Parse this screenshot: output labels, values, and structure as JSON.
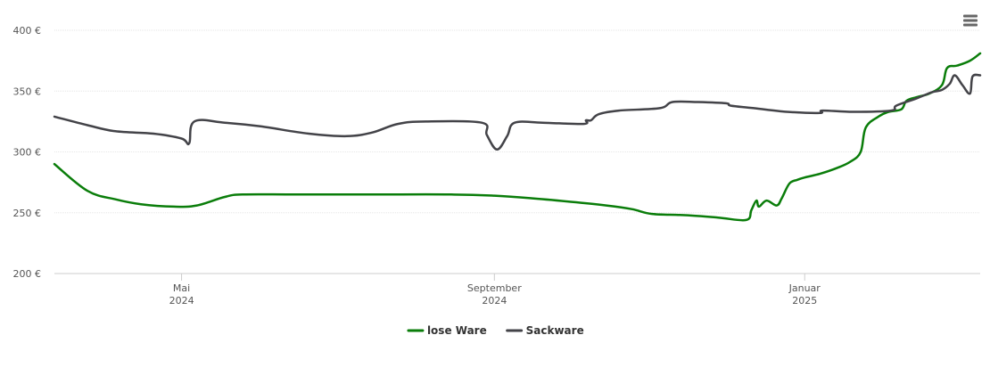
{
  "chart_data": {
    "type": "line",
    "y_unit": "€",
    "ylim": [
      200,
      400
    ],
    "y_ticks": [
      {
        "value": 200,
        "label": "200 €"
      },
      {
        "value": 250,
        "label": "250 €"
      },
      {
        "value": 300,
        "label": "300 €"
      },
      {
        "value": 350,
        "label": "350 €"
      },
      {
        "value": 400,
        "label": "400 €"
      }
    ],
    "x_range": [
      "2024-03-12",
      "2025-03-11"
    ],
    "x_ticks": [
      {
        "date": "2024-05-01",
        "month": "Mai",
        "year": "2024"
      },
      {
        "date": "2024-09-01",
        "month": "September",
        "year": "2024"
      },
      {
        "date": "2025-01-01",
        "month": "Januar",
        "year": "2025"
      }
    ],
    "grid": true,
    "legend_position": "bottom-center",
    "series": [
      {
        "name": "lose Ware",
        "color": "#0a7d0a",
        "points": [
          [
            "2024-03-12",
            290
          ],
          [
            "2024-03-25",
            268
          ],
          [
            "2024-04-05",
            261
          ],
          [
            "2024-04-15",
            257
          ],
          [
            "2024-04-28",
            255
          ],
          [
            "2024-05-07",
            256
          ],
          [
            "2024-05-18",
            263
          ],
          [
            "2024-05-25",
            265
          ],
          [
            "2024-06-15",
            265
          ],
          [
            "2024-07-15",
            265
          ],
          [
            "2024-08-15",
            265
          ],
          [
            "2024-09-01",
            264
          ],
          [
            "2024-09-15",
            262
          ],
          [
            "2024-10-01",
            259
          ],
          [
            "2024-10-15",
            256
          ],
          [
            "2024-10-25",
            253
          ],
          [
            "2024-11-02",
            249
          ],
          [
            "2024-11-15",
            248
          ],
          [
            "2024-11-28",
            246
          ],
          [
            "2024-12-09",
            244
          ],
          [
            "2024-12-11",
            252
          ],
          [
            "2024-12-13",
            260
          ],
          [
            "2024-12-14",
            255
          ],
          [
            "2024-12-17",
            260
          ],
          [
            "2024-12-21",
            256
          ],
          [
            "2024-12-23",
            262
          ],
          [
            "2024-12-26",
            274
          ],
          [
            "2024-12-29",
            277
          ],
          [
            "2025-01-01",
            279
          ],
          [
            "2025-01-07",
            282
          ],
          [
            "2025-01-14",
            287
          ],
          [
            "2025-01-19",
            292
          ],
          [
            "2025-01-23",
            300
          ],
          [
            "2025-01-25",
            320
          ],
          [
            "2025-01-30",
            329
          ],
          [
            "2025-02-03",
            333
          ],
          [
            "2025-02-08",
            335
          ],
          [
            "2025-02-10",
            342
          ],
          [
            "2025-02-14",
            345
          ],
          [
            "2025-02-19",
            348
          ],
          [
            "2025-02-24",
            355
          ],
          [
            "2025-02-26",
            369
          ],
          [
            "2025-03-02",
            371
          ],
          [
            "2025-03-07",
            375
          ],
          [
            "2025-03-11",
            381
          ]
        ]
      },
      {
        "name": "Sackware",
        "color": "#434348",
        "points": [
          [
            "2024-03-12",
            329
          ],
          [
            "2024-03-25",
            322
          ],
          [
            "2024-04-05",
            317
          ],
          [
            "2024-04-20",
            315
          ],
          [
            "2024-05-01",
            311
          ],
          [
            "2024-05-04",
            307
          ],
          [
            "2024-05-06",
            325
          ],
          [
            "2024-05-18",
            324
          ],
          [
            "2024-06-01",
            321
          ],
          [
            "2024-06-20",
            315
          ],
          [
            "2024-07-05",
            313
          ],
          [
            "2024-07-15",
            316
          ],
          [
            "2024-07-25",
            323
          ],
          [
            "2024-08-05",
            325
          ],
          [
            "2024-08-27",
            324
          ],
          [
            "2024-08-29",
            314
          ],
          [
            "2024-09-02",
            302
          ],
          [
            "2024-09-06",
            313
          ],
          [
            "2024-09-09",
            324
          ],
          [
            "2024-09-20",
            324
          ],
          [
            "2024-10-06",
            323
          ],
          [
            "2024-10-07",
            326
          ],
          [
            "2024-10-09",
            326
          ],
          [
            "2024-10-12",
            331
          ],
          [
            "2024-10-20",
            334
          ],
          [
            "2024-11-05",
            336
          ],
          [
            "2024-11-10",
            341
          ],
          [
            "2024-11-20",
            341
          ],
          [
            "2024-12-01",
            340
          ],
          [
            "2024-12-03",
            338
          ],
          [
            "2024-12-12",
            336
          ],
          [
            "2024-12-25",
            333
          ],
          [
            "2025-01-07",
            332
          ],
          [
            "2025-01-08",
            334
          ],
          [
            "2025-01-20",
            333
          ],
          [
            "2025-02-04",
            334
          ],
          [
            "2025-02-06",
            338
          ],
          [
            "2025-02-14",
            344
          ],
          [
            "2025-02-20",
            349
          ],
          [
            "2025-02-24",
            351
          ],
          [
            "2025-02-27",
            356
          ],
          [
            "2025-03-01",
            363
          ],
          [
            "2025-03-04",
            355
          ],
          [
            "2025-03-07",
            348
          ],
          [
            "2025-03-08",
            362
          ],
          [
            "2025-03-11",
            363
          ]
        ]
      }
    ]
  }
}
